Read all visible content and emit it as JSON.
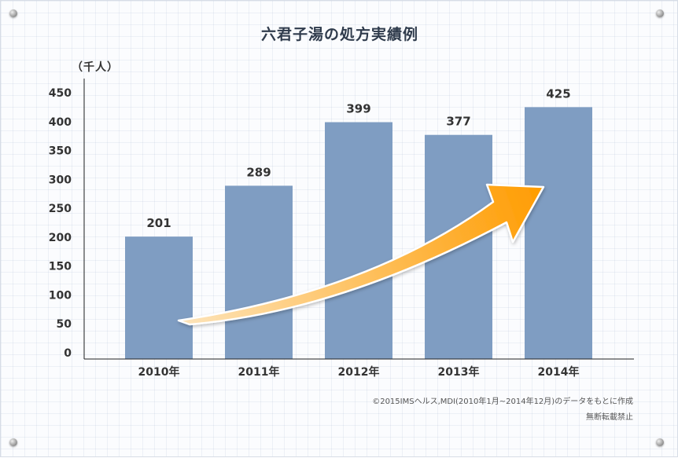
{
  "chart_data": {
    "type": "bar",
    "title": "六君子湯の処方実績例",
    "ylabel": "（千人）",
    "categories": [
      "2010年",
      "2011年",
      "2012年",
      "2013年",
      "2014年"
    ],
    "values": [
      201,
      289,
      399,
      377,
      425
    ],
    "yticks": [
      "0",
      "50",
      "100",
      "150",
      "200",
      "250",
      "300",
      "350",
      "400",
      "450"
    ],
    "ylim": [
      0,
      450
    ],
    "grid": false,
    "bar_color": "#7f9dc2",
    "arrow_colors": [
      "#fde3b8",
      "#ff9c00"
    ]
  },
  "footer": {
    "source": "©2015IMSヘルス,MDI(2010年1月~2014年12月)のデータをもとに作成",
    "notice": "無断転載禁止"
  }
}
